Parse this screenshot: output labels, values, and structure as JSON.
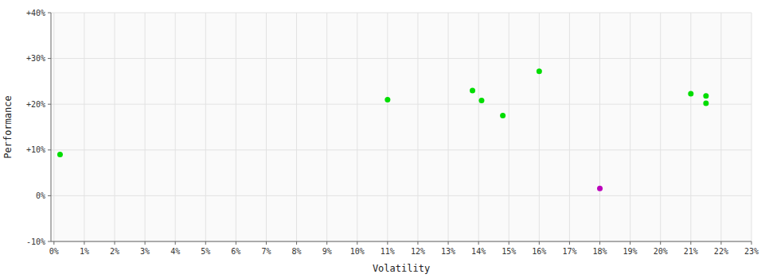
{
  "chart_data": {
    "type": "scatter",
    "xlabel": "Volatility",
    "ylabel": "Performance",
    "x": [
      0.002,
      0.11,
      0.138,
      0.141,
      0.148,
      0.16,
      0.18,
      0.21,
      0.215,
      0.215
    ],
    "values": [
      0.09,
      0.21,
      0.23,
      0.208,
      0.175,
      0.272,
      0.016,
      0.223,
      0.218,
      0.202
    ],
    "colors": [
      "#00dd00",
      "#00dd00",
      "#00dd00",
      "#00dd00",
      "#00dd00",
      "#00dd00",
      "#bb00bb",
      "#00dd00",
      "#00dd00",
      "#00dd00"
    ],
    "xlim": [
      -0.001,
      0.23
    ],
    "ylim": [
      -0.1,
      0.4
    ],
    "xticks": [
      {
        "value": 0.0,
        "label": "0%"
      },
      {
        "value": 0.01,
        "label": "1%"
      },
      {
        "value": 0.02,
        "label": "2%"
      },
      {
        "value": 0.03,
        "label": "3%"
      },
      {
        "value": 0.04,
        "label": "4%"
      },
      {
        "value": 0.05,
        "label": "5%"
      },
      {
        "value": 0.06,
        "label": "6%"
      },
      {
        "value": 0.07,
        "label": "7%"
      },
      {
        "value": 0.08,
        "label": "8%"
      },
      {
        "value": 0.09,
        "label": "9%"
      },
      {
        "value": 0.1,
        "label": "10%"
      },
      {
        "value": 0.11,
        "label": "11%"
      },
      {
        "value": 0.12,
        "label": "12%"
      },
      {
        "value": 0.13,
        "label": "13%"
      },
      {
        "value": 0.14,
        "label": "14%"
      },
      {
        "value": 0.15,
        "label": "15%"
      },
      {
        "value": 0.16,
        "label": "16%"
      },
      {
        "value": 0.17,
        "label": "17%"
      },
      {
        "value": 0.18,
        "label": "18%"
      },
      {
        "value": 0.19,
        "label": "19%"
      },
      {
        "value": 0.2,
        "label": "20%"
      },
      {
        "value": 0.21,
        "label": "21%"
      },
      {
        "value": 0.22,
        "label": "22%"
      },
      {
        "value": 0.23,
        "label": "23%"
      }
    ],
    "yticks": [
      {
        "value": -0.1,
        "label": "-10%"
      },
      {
        "value": 0.0,
        "label": "0%"
      },
      {
        "value": 0.1,
        "label": "+10%"
      },
      {
        "value": 0.2,
        "label": "+20%"
      },
      {
        "value": 0.3,
        "label": "+30%"
      },
      {
        "value": 0.4,
        "label": "+40%"
      }
    ],
    "grid": true
  }
}
